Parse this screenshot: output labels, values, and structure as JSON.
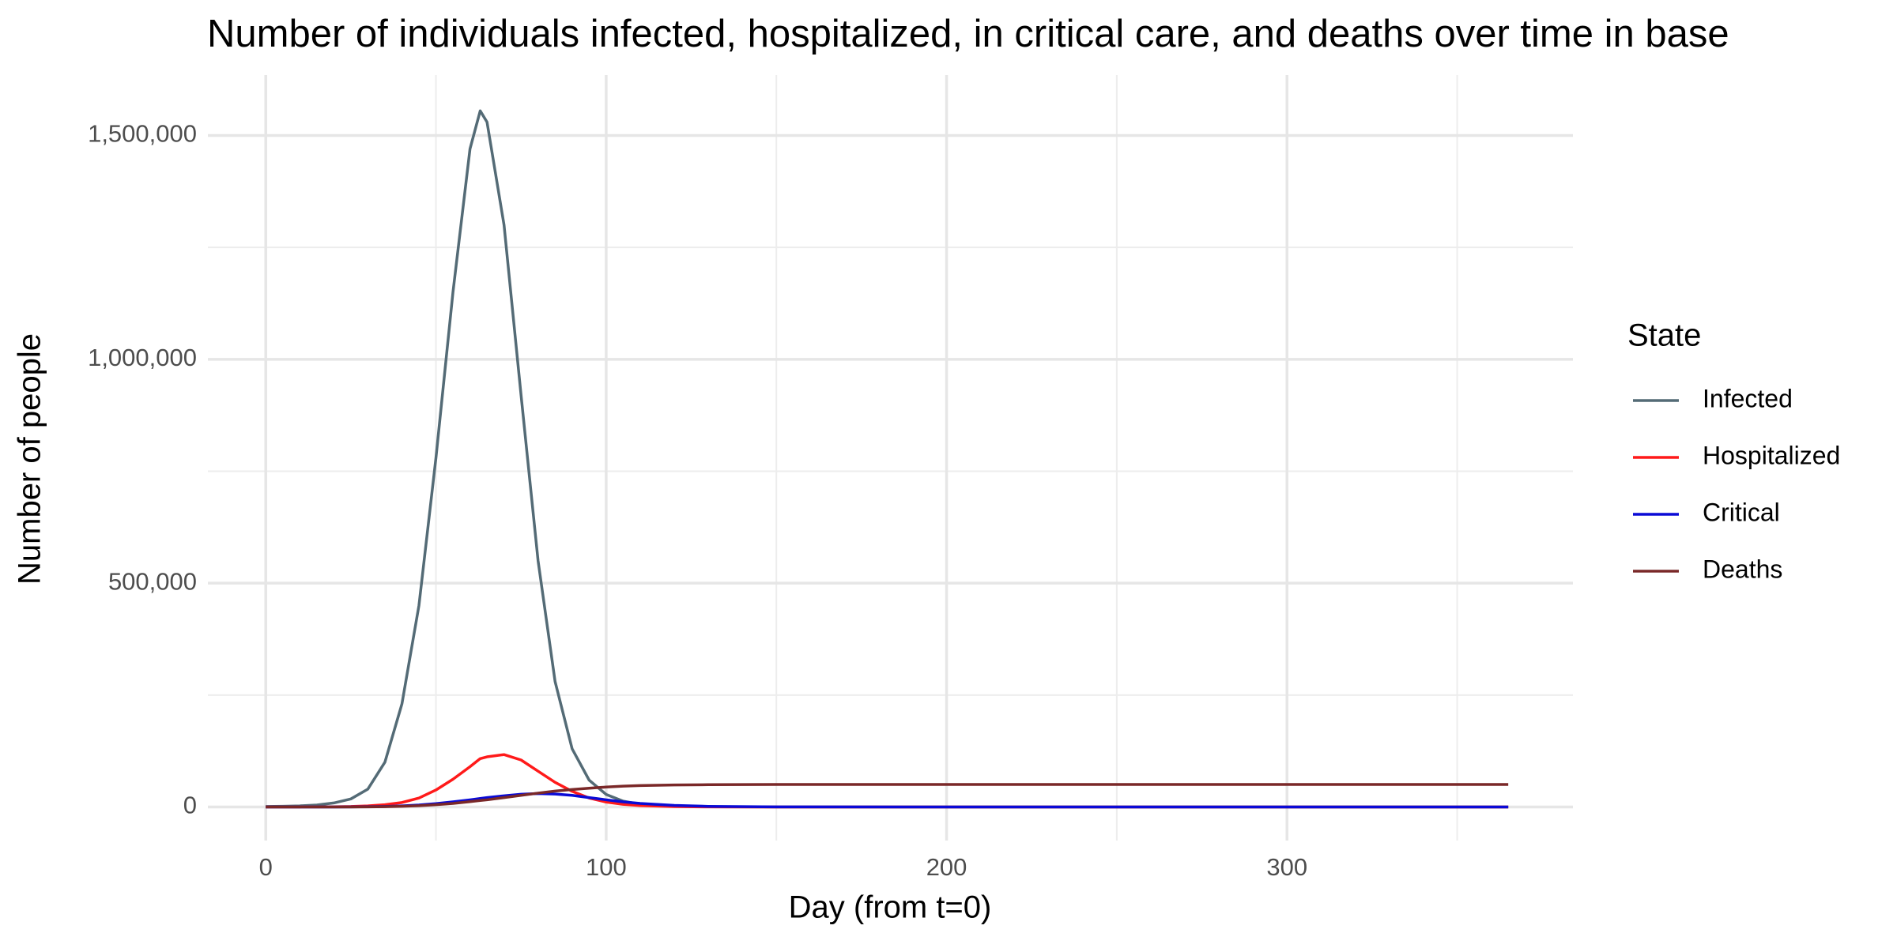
{
  "chart_data": {
    "type": "line",
    "title": "Number of individuals infected, hospitalized, in critical care, and deaths over time in base",
    "x_label": "Day (from t=0)",
    "y_label": "Number of people",
    "legend_title": "State",
    "legend_position": "right",
    "grid": true,
    "x": [
      0,
      5,
      10,
      15,
      20,
      25,
      30,
      35,
      40,
      45,
      50,
      55,
      60,
      63,
      65,
      70,
      75,
      80,
      85,
      90,
      95,
      100,
      105,
      110,
      120,
      130,
      150,
      200,
      250,
      300,
      365
    ],
    "series": [
      {
        "name": "Infected",
        "color": "#546b76",
        "values": [
          1000,
          1500,
          2500,
          4500,
          9000,
          18000,
          40000,
          100000,
          230000,
          450000,
          780000,
          1150000,
          1470000,
          1555000,
          1530000,
          1300000,
          920000,
          550000,
          280000,
          130000,
          60000,
          28000,
          13000,
          6000,
          1500,
          400,
          50,
          0,
          0,
          0,
          0
        ]
      },
      {
        "name": "Hospitalized",
        "color": "#ff1a1a",
        "values": [
          0,
          0,
          100,
          200,
          500,
          1000,
          2500,
          5000,
          10000,
          20000,
          38000,
          62000,
          90000,
          108000,
          112000,
          117000,
          105000,
          80000,
          55000,
          35000,
          20000,
          11000,
          6000,
          3000,
          800,
          200,
          0,
          0,
          0,
          0,
          0
        ]
      },
      {
        "name": "Critical",
        "color": "#0a0ad6",
        "values": [
          0,
          0,
          0,
          0,
          100,
          300,
          600,
          1200,
          2500,
          4500,
          7500,
          11500,
          16000,
          19000,
          21000,
          25000,
          28500,
          30000,
          29000,
          26000,
          21000,
          16000,
          11500,
          8000,
          3500,
          1400,
          200,
          0,
          0,
          0,
          0
        ]
      },
      {
        "name": "Deaths",
        "color": "#7a2828",
        "values": [
          0,
          0,
          0,
          0,
          0,
          100,
          300,
          700,
          1500,
          2800,
          5000,
          8000,
          12000,
          14500,
          16000,
          21000,
          26000,
          31000,
          35500,
          39000,
          42000,
          44500,
          46500,
          47800,
          49200,
          49800,
          50200,
          50300,
          50300,
          50300,
          50300
        ]
      }
    ],
    "xlim": [
      -17,
      384
    ],
    "xticks": [
      0,
      100,
      200,
      300
    ],
    "ylim": [
      -75000,
      1635000
    ],
    "yticks": [
      0,
      {
        "value": 500000,
        "label": "500,000"
      },
      {
        "value": 1000000,
        "label": "1,000,000"
      },
      {
        "value": 1500000,
        "label": "1,500,000"
      }
    ]
  }
}
